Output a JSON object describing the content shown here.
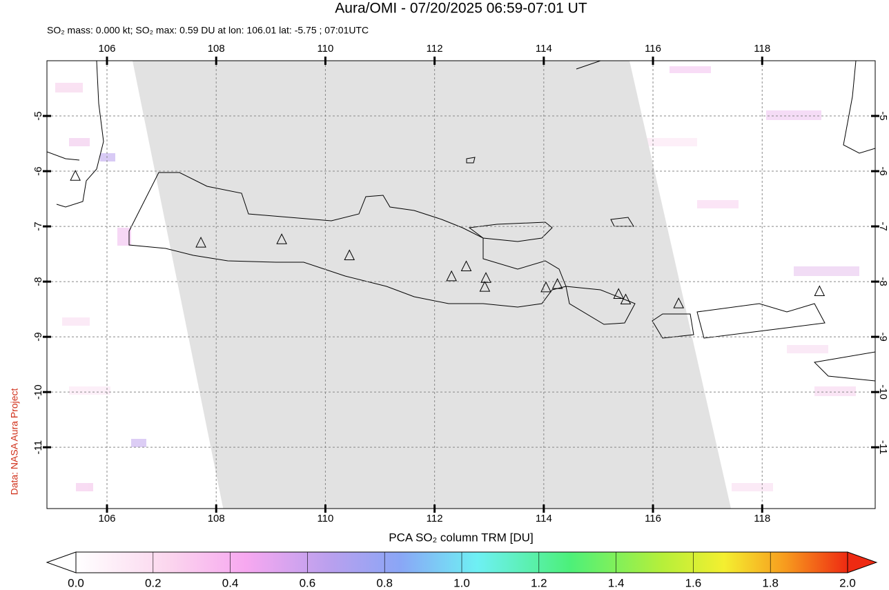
{
  "chart_data": {
    "type": "map",
    "title": "Aura/OMI - 07/20/2025 06:59-07:01 UT",
    "subtitle": "SO₂ mass: 0.000 kt; SO₂ max: 0.59 DU at lon: 106.01 lat: -5.75 ; 07:01UTC",
    "credit": "Data: NASA Aura Project",
    "xlim": [
      104.9,
      120.07
    ],
    "ylim": [
      -12.11,
      -4.0
    ],
    "xticks": [
      106,
      108,
      110,
      112,
      114,
      116,
      118
    ],
    "yticks": [
      -5,
      -6,
      -7,
      -8,
      -9,
      -10,
      -11
    ],
    "grid": true,
    "volcanoes": {
      "color": "#000000",
      "lon": [
        105.42,
        107.72,
        109.2,
        110.44,
        112.31,
        112.58,
        112.94,
        112.92,
        114.04,
        114.25,
        115.37,
        115.5,
        116.47,
        119.05
      ],
      "lat": [
        -6.09,
        -7.3,
        -7.24,
        -7.53,
        -7.91,
        -7.73,
        -7.94,
        -8.1,
        -8.11,
        -8.05,
        -8.23,
        -8.33,
        -8.4,
        -8.18
      ]
    },
    "colorbar": {
      "label": "PCA SO₂ column TRM [DU]",
      "lim": [
        0,
        2
      ],
      "ticks": [
        {
          "value": 0,
          "label": "0.0"
        },
        {
          "value": 0.2,
          "label": "0.2"
        },
        {
          "value": 0.4,
          "label": "0.4"
        },
        {
          "value": 0.6,
          "label": "0.6"
        },
        {
          "value": 0.8,
          "label": "0.8"
        },
        {
          "value": 1,
          "label": "1.0"
        },
        {
          "value": 1.2,
          "label": "1.2"
        },
        {
          "value": 1.4,
          "label": "1.4"
        },
        {
          "value": 1.6,
          "label": "1.6"
        },
        {
          "value": 1.8,
          "label": "1.8"
        },
        {
          "value": 2,
          "label": "2.0"
        }
      ]
    }
  }
}
